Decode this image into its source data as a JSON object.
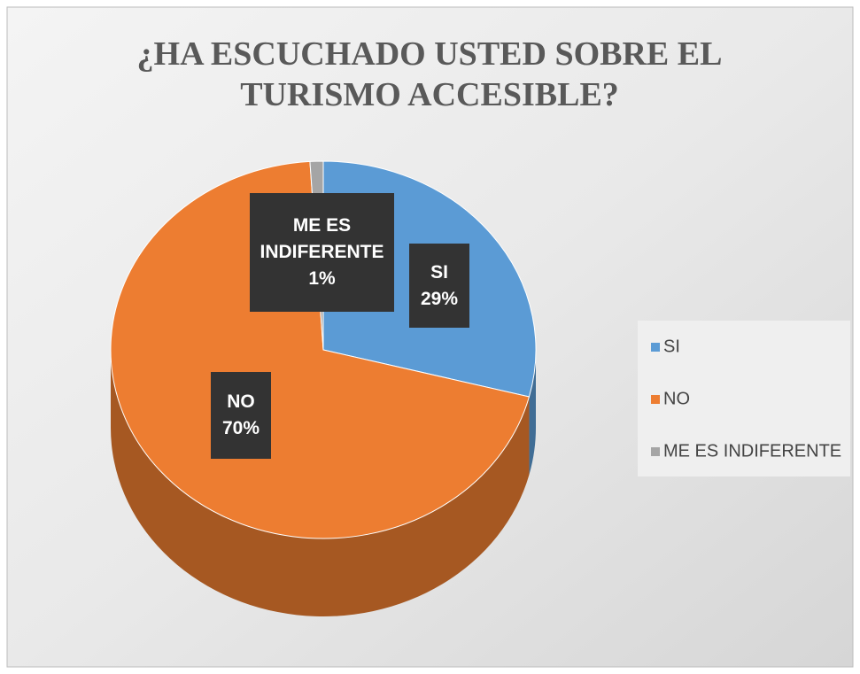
{
  "chart_data": {
    "type": "pie",
    "title": "¿HA ESCUCHADO USTED SOBRE EL TURISMO ACCESIBLE?",
    "categories": [
      "SI",
      "NO",
      "ME ES INDIFERENTE"
    ],
    "values": [
      29,
      70,
      1
    ],
    "value_labels": [
      "29%",
      "70%",
      "1%"
    ],
    "colors": [
      "#5b9bd5",
      "#ed7d31",
      "#a5a5a5"
    ],
    "legend": "right"
  }
}
